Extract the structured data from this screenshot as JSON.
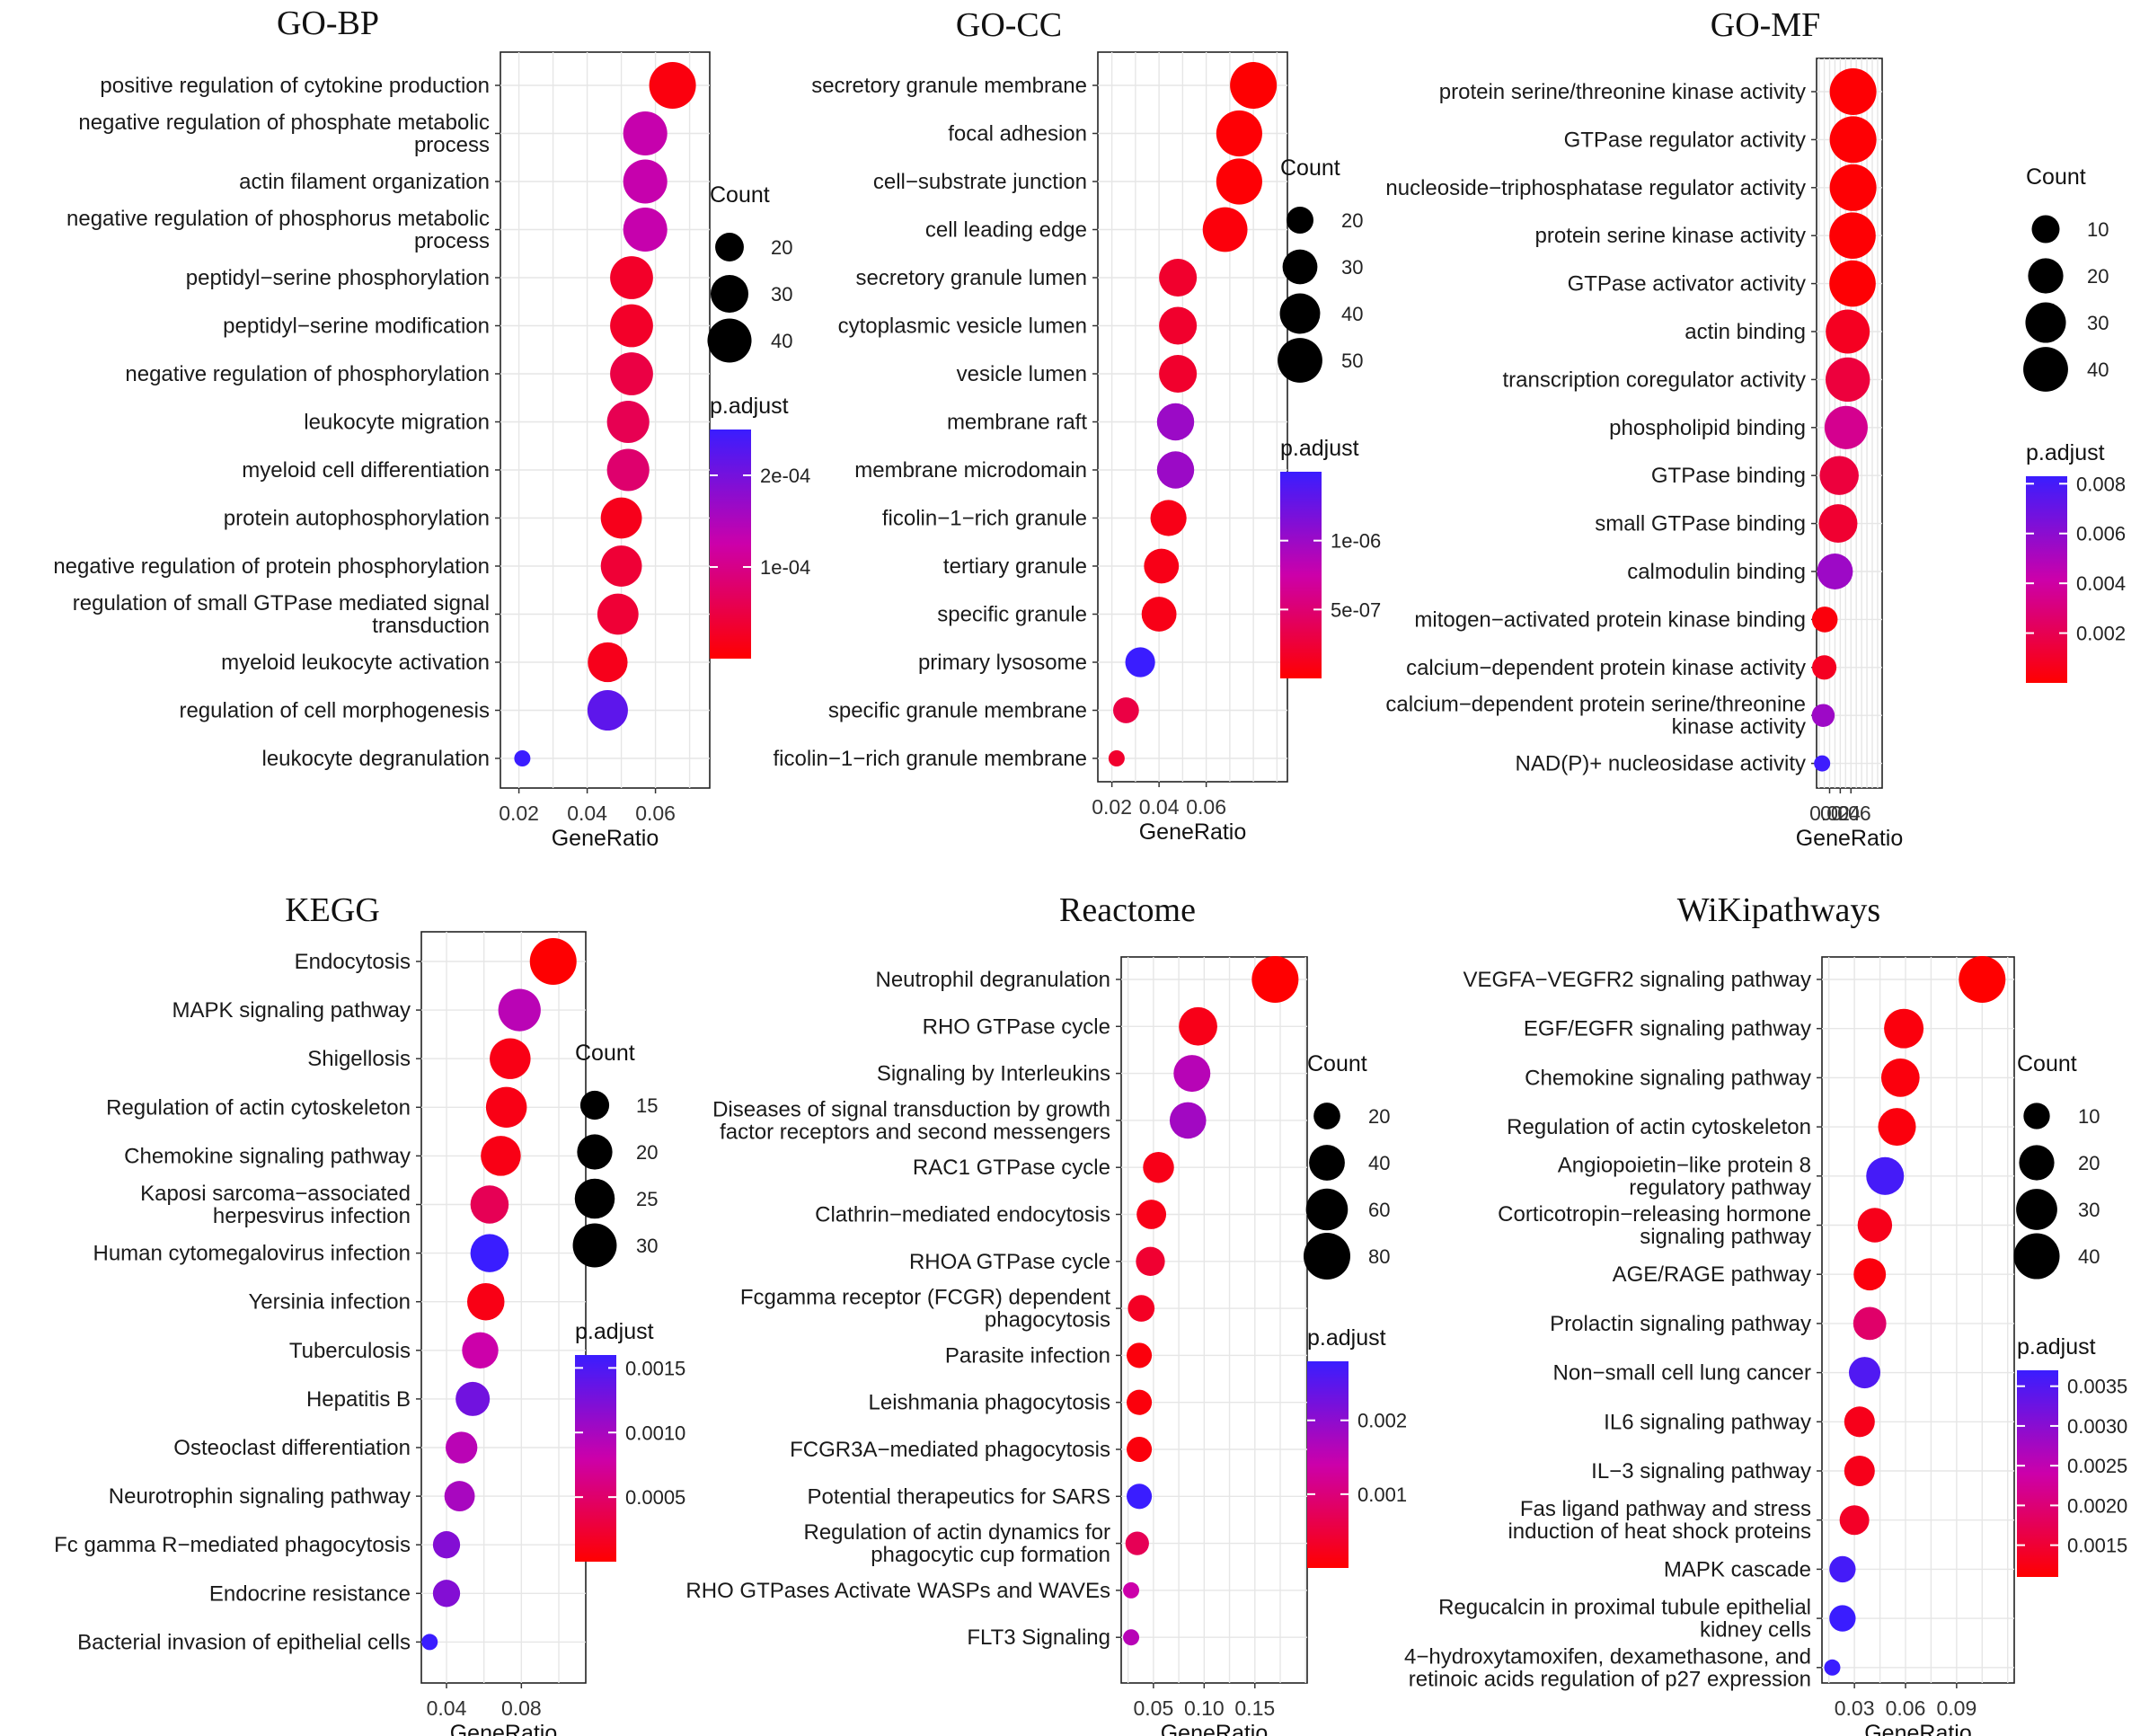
{
  "chart_data": [
    {
      "type": "scatter",
      "title": "GO-BP",
      "xlabel": "GeneRatio",
      "xticks": [
        0.02,
        0.04,
        0.06
      ],
      "xlim": [
        0.018,
        0.068
      ],
      "size_legend": {
        "title": "Count",
        "breaks": [
          20,
          30,
          40
        ]
      },
      "color_legend": {
        "title": "p.adjust",
        "min": 0,
        "max": 0.00025,
        "breaks": [
          0.0001,
          0.0002
        ],
        "labels": [
          "1e-04",
          "2e-04"
        ]
      },
      "terms": [
        {
          "label": [
            "positive regulation of cytokine production"
          ],
          "x": 0.065,
          "count": 45,
          "padj": 1e-05
        },
        {
          "label": [
            "negative regulation of phosphate metabolic",
            "process"
          ],
          "x": 0.057,
          "count": 40,
          "padj": 0.00013
        },
        {
          "label": [
            "actin filament organization"
          ],
          "x": 0.057,
          "count": 40,
          "padj": 0.00013
        },
        {
          "label": [
            "negative regulation of phosphorus metabolic",
            "process"
          ],
          "x": 0.057,
          "count": 40,
          "padj": 0.00013
        },
        {
          "label": [
            "peptidyl−serine phosphorylation"
          ],
          "x": 0.053,
          "count": 38,
          "padj": 3e-05
        },
        {
          "label": [
            "peptidyl−serine modification"
          ],
          "x": 0.053,
          "count": 38,
          "padj": 3e-05
        },
        {
          "label": [
            "negative regulation of phosphorylation"
          ],
          "x": 0.053,
          "count": 38,
          "padj": 5e-05
        },
        {
          "label": [
            "leukocyte migration"
          ],
          "x": 0.052,
          "count": 37,
          "padj": 6e-05
        },
        {
          "label": [
            "myeloid cell differentiation"
          ],
          "x": 0.052,
          "count": 37,
          "padj": 8e-05
        },
        {
          "label": [
            "protein autophosphorylation"
          ],
          "x": 0.05,
          "count": 35,
          "padj": 2e-05
        },
        {
          "label": [
            "negative regulation of protein phosphorylation"
          ],
          "x": 0.05,
          "count": 35,
          "padj": 4e-05
        },
        {
          "label": [
            "regulation of small GTPase mediated signal",
            "transduction"
          ],
          "x": 0.049,
          "count": 35,
          "padj": 4e-05
        },
        {
          "label": [
            "myeloid leukocyte activation"
          ],
          "x": 0.046,
          "count": 33,
          "padj": 2e-05
        },
        {
          "label": [
            "regulation of cell morphogenesis"
          ],
          "x": 0.046,
          "count": 34,
          "padj": 0.00022
        },
        {
          "label": [
            "leukocyte degranulation"
          ],
          "x": 0.021,
          "count": 15,
          "padj": 0.00025
        }
      ]
    },
    {
      "type": "scatter",
      "title": "GO-CC",
      "xlabel": "GeneRatio",
      "xticks": [
        0.02,
        0.04,
        0.06
      ],
      "xlim": [
        0.019,
        0.083
      ],
      "size_legend": {
        "title": "Count",
        "breaks": [
          20,
          30,
          40,
          50
        ]
      },
      "color_legend": {
        "title": "p.adjust",
        "min": 0,
        "max": 1.5e-06,
        "breaks": [
          5e-07,
          1e-06
        ],
        "labels": [
          "5e-07",
          "1e-06"
        ]
      },
      "terms": [
        {
          "label": [
            "secretory granule membrane"
          ],
          "x": 0.08,
          "count": 55,
          "padj": 1e-08
        },
        {
          "label": [
            "focal adhesion"
          ],
          "x": 0.074,
          "count": 53,
          "padj": 2e-08
        },
        {
          "label": [
            "cell−substrate junction"
          ],
          "x": 0.074,
          "count": 53,
          "padj": 2e-08
        },
        {
          "label": [
            "cell leading edge"
          ],
          "x": 0.068,
          "count": 50,
          "padj": 5e-08
        },
        {
          "label": [
            "secretory granule lumen"
          ],
          "x": 0.048,
          "count": 35,
          "padj": 2e-07
        },
        {
          "label": [
            "cytoplasmic vesicle lumen"
          ],
          "x": 0.048,
          "count": 35,
          "padj": 2e-07
        },
        {
          "label": [
            "vesicle lumen"
          ],
          "x": 0.048,
          "count": 35,
          "padj": 2e-07
        },
        {
          "label": [
            "membrane raft"
          ],
          "x": 0.047,
          "count": 34,
          "padj": 1e-06
        },
        {
          "label": [
            "membrane microdomain"
          ],
          "x": 0.047,
          "count": 34,
          "padj": 1e-06
        },
        {
          "label": [
            "ficolin−1−rich granule"
          ],
          "x": 0.044,
          "count": 32,
          "padj": 1e-07
        },
        {
          "label": [
            "tertiary granule"
          ],
          "x": 0.041,
          "count": 30,
          "padj": 1e-07
        },
        {
          "label": [
            "specific granule"
          ],
          "x": 0.04,
          "count": 30,
          "padj": 1e-07
        },
        {
          "label": [
            "primary lysosome"
          ],
          "x": 0.032,
          "count": 23,
          "padj": 1.5e-06
        },
        {
          "label": [
            "specific granule membrane"
          ],
          "x": 0.026,
          "count": 19,
          "padj": 3e-07
        },
        {
          "label": [
            "ficolin−1−rich granule membrane"
          ],
          "x": 0.022,
          "count": 15,
          "padj": 2e-07
        }
      ]
    },
    {
      "type": "scatter",
      "title": "GO-MF",
      "xlabel": "GeneRatio",
      "xticks": [
        0.02,
        0.04,
        0.06
      ],
      "xlim": [
        0.004,
        0.068
      ],
      "size_legend": {
        "title": "Count",
        "breaks": [
          10,
          20,
          30,
          40
        ]
      },
      "color_legend": {
        "title": "p.adjust",
        "min": 0,
        "max": 0.0083,
        "breaks": [
          0.002,
          0.004,
          0.006,
          0.008
        ],
        "labels": [
          "0.002",
          "0.004",
          "0.006",
          "0.008"
        ]
      },
      "terms": [
        {
          "label": [
            "protein serine/threonine kinase activity"
          ],
          "x": 0.064,
          "count": 45,
          "padj": 0.0001
        },
        {
          "label": [
            "GTPase regulator activity"
          ],
          "x": 0.064,
          "count": 45,
          "padj": 0.0001
        },
        {
          "label": [
            "nucleoside−triphosphatase regulator activity"
          ],
          "x": 0.064,
          "count": 45,
          "padj": 0.0001
        },
        {
          "label": [
            "protein serine kinase activity"
          ],
          "x": 0.063,
          "count": 44,
          "padj": 0.0001
        },
        {
          "label": [
            "GTPase activator activity"
          ],
          "x": 0.063,
          "count": 44,
          "padj": 0.0001
        },
        {
          "label": [
            "actin binding"
          ],
          "x": 0.054,
          "count": 38,
          "padj": 0.0008
        },
        {
          "label": [
            "transcription coregulator activity"
          ],
          "x": 0.054,
          "count": 39,
          "padj": 0.0015
        },
        {
          "label": [
            "phospholipid binding"
          ],
          "x": 0.051,
          "count": 36,
          "padj": 0.0035
        },
        {
          "label": [
            "GTPase binding"
          ],
          "x": 0.038,
          "count": 27,
          "padj": 0.0015
        },
        {
          "label": [
            "small GTPase binding"
          ],
          "x": 0.036,
          "count": 26,
          "padj": 0.0012
        },
        {
          "label": [
            "calmodulin binding"
          ],
          "x": 0.03,
          "count": 21,
          "padj": 0.0055
        },
        {
          "label": [
            "mitogen−activated protein kinase binding"
          ],
          "x": 0.011,
          "count": 8,
          "padj": 0.0003
        },
        {
          "label": [
            "calcium−dependent protein kinase activity"
          ],
          "x": 0.01,
          "count": 7,
          "padj": 0.0008
        },
        {
          "label": [
            "calcium−dependent protein serine/threonine",
            "kinase activity"
          ],
          "x": 0.008,
          "count": 6,
          "padj": 0.0055
        },
        {
          "label": [
            "NAD(P)+ nucleosidase activity"
          ],
          "x": 0.006,
          "count": 4,
          "padj": 0.0082
        }
      ]
    },
    {
      "type": "scatter",
      "title": "KEGG",
      "xlabel": "GeneRatio",
      "xticks": [
        0.04,
        0.08
      ],
      "xlim": [
        0.028,
        0.1
      ],
      "size_legend": {
        "title": "Count",
        "breaks": [
          15,
          20,
          25,
          30
        ]
      },
      "color_legend": {
        "title": "p.adjust",
        "min": 0,
        "max": 0.0016,
        "breaks": [
          0.0005,
          0.001,
          0.0015
        ],
        "labels": [
          "0.0005",
          "0.0010",
          "0.0015"
        ]
      },
      "terms": [
        {
          "label": [
            "Endocytosis"
          ],
          "x": 0.097,
          "count": 34,
          "padj": 1e-05
        },
        {
          "label": [
            "MAPK signaling pathway"
          ],
          "x": 0.079,
          "count": 28,
          "padj": 0.0009
        },
        {
          "label": [
            "Shigellosis"
          ],
          "x": 0.074,
          "count": 26,
          "padj": 0.0001
        },
        {
          "label": [
            "Regulation of actin cytoskeleton"
          ],
          "x": 0.072,
          "count": 26,
          "padj": 0.0001
        },
        {
          "label": [
            "Chemokine signaling pathway"
          ],
          "x": 0.069,
          "count": 25,
          "padj": 0.0001
        },
        {
          "label": [
            "Kaposi sarcoma−associated",
            "herpesvirus infection"
          ],
          "x": 0.063,
          "count": 23,
          "padj": 0.0004
        },
        {
          "label": [
            "Human cytomegalovirus infection"
          ],
          "x": 0.063,
          "count": 23,
          "padj": 0.0016
        },
        {
          "label": [
            "Yersinia infection"
          ],
          "x": 0.061,
          "count": 22,
          "padj": 0.0001
        },
        {
          "label": [
            "Tuberculosis"
          ],
          "x": 0.058,
          "count": 21,
          "padj": 0.0008
        },
        {
          "label": [
            "Hepatitis B"
          ],
          "x": 0.054,
          "count": 19,
          "padj": 0.0013
        },
        {
          "label": [
            "Osteoclast differentiation"
          ],
          "x": 0.048,
          "count": 17,
          "padj": 0.0009
        },
        {
          "label": [
            "Neurotrophin signaling pathway"
          ],
          "x": 0.047,
          "count": 16,
          "padj": 0.001
        },
        {
          "label": [
            "Fc gamma R−mediated phagocytosis"
          ],
          "x": 0.04,
          "count": 14,
          "padj": 0.0012
        },
        {
          "label": [
            "Endocrine resistance"
          ],
          "x": 0.04,
          "count": 14,
          "padj": 0.0012
        },
        {
          "label": [
            "Bacterial invasion of epithelial cells"
          ],
          "x": 0.031,
          "count": 11,
          "padj": 0.0016
        }
      ]
    },
    {
      "type": "scatter",
      "title": "Reactome",
      "xlabel": "GeneRatio",
      "xticks": [
        0.05,
        0.1,
        0.15
      ],
      "xtick_labels": [
        "0.05",
        "0.10",
        "0.15"
      ],
      "xlim": [
        0.02,
        0.175
      ],
      "size_legend": {
        "title": "Count",
        "breaks": [
          20,
          40,
          60,
          80
        ]
      },
      "color_legend": {
        "title": "p.adjust",
        "min": 0,
        "max": 0.0028,
        "breaks": [
          0.001,
          0.002
        ],
        "labels": [
          "0.001",
          "0.002"
        ]
      },
      "terms": [
        {
          "label": [
            "Neutrophil degranulation"
          ],
          "x": 0.17,
          "count": 80,
          "padj": 1e-05
        },
        {
          "label": [
            "RHO GTPase cycle"
          ],
          "x": 0.094,
          "count": 48,
          "padj": 0.0002
        },
        {
          "label": [
            "Signaling by Interleukins"
          ],
          "x": 0.088,
          "count": 43,
          "padj": 0.0016
        },
        {
          "label": [
            "Diseases of signal transduction by growth",
            "factor receptors and second messengers"
          ],
          "x": 0.084,
          "count": 42,
          "padj": 0.0018
        },
        {
          "label": [
            "RAC1 GTPase cycle"
          ],
          "x": 0.055,
          "count": 28,
          "padj": 0.0002
        },
        {
          "label": [
            "Clathrin−mediated endocytosis"
          ],
          "x": 0.048,
          "count": 25,
          "padj": 0.0002
        },
        {
          "label": [
            "RHOA GTPase cycle"
          ],
          "x": 0.047,
          "count": 24,
          "padj": 0.0004
        },
        {
          "label": [
            "Fcgamma receptor (FCGR) dependent",
            "phagocytosis"
          ],
          "x": 0.038,
          "count": 20,
          "padj": 0.0003
        },
        {
          "label": [
            "Parasite infection"
          ],
          "x": 0.036,
          "count": 18,
          "padj": 0.0001
        },
        {
          "label": [
            "Leishmania phagocytosis"
          ],
          "x": 0.036,
          "count": 18,
          "padj": 0.0001
        },
        {
          "label": [
            "FCGR3A−mediated phagocytosis"
          ],
          "x": 0.036,
          "count": 18,
          "padj": 0.0001
        },
        {
          "label": [
            "Potential therapeutics for SARS"
          ],
          "x": 0.036,
          "count": 18,
          "padj": 0.0028
        },
        {
          "label": [
            "Regulation of actin dynamics for",
            "phagocytic cup formation"
          ],
          "x": 0.034,
          "count": 16,
          "padj": 0.0007
        },
        {
          "label": [
            "RHO GTPases Activate WASPs and WAVEs"
          ],
          "x": 0.028,
          "count": 12,
          "padj": 0.0014
        },
        {
          "label": [
            "FLT3 Signaling"
          ],
          "x": 0.028,
          "count": 12,
          "padj": 0.0016
        }
      ]
    },
    {
      "type": "scatter",
      "title": "WiKipathways",
      "xlabel": "GeneRatio",
      "xticks": [
        0.03,
        0.06,
        0.09
      ],
      "xlim": [
        0.012,
        0.108
      ],
      "size_legend": {
        "title": "Count",
        "breaks": [
          10,
          20,
          30,
          40
        ]
      },
      "color_legend": {
        "title": "p.adjust",
        "min": 0.0011,
        "max": 0.0037,
        "breaks": [
          0.0015,
          0.002,
          0.0025,
          0.003,
          0.0035
        ],
        "labels": [
          "0.0015",
          "0.0020",
          "0.0025",
          "0.0030",
          "0.0035"
        ]
      },
      "terms": [
        {
          "label": [
            "VEGFA−VEGFR2 signaling pathway"
          ],
          "x": 0.105,
          "count": 42,
          "padj": 0.0011
        },
        {
          "label": [
            "EGF/EGFR signaling pathway"
          ],
          "x": 0.059,
          "count": 27,
          "padj": 0.0012
        },
        {
          "label": [
            "Chemokine signaling pathway"
          ],
          "x": 0.057,
          "count": 25,
          "padj": 0.0012
        },
        {
          "label": [
            "Regulation of actin cytoskeleton"
          ],
          "x": 0.055,
          "count": 24,
          "padj": 0.0012
        },
        {
          "label": [
            "Angiopoietin−like protein 8",
            "regulatory pathway"
          ],
          "x": 0.048,
          "count": 24,
          "padj": 0.0036
        },
        {
          "label": [
            "Corticotropin−releasing hormone",
            "signaling pathway"
          ],
          "x": 0.042,
          "count": 19,
          "padj": 0.0013
        },
        {
          "label": [
            "AGE/RAGE pathway"
          ],
          "x": 0.039,
          "count": 16,
          "padj": 0.0012
        },
        {
          "label": [
            "Prolactin signaling pathway"
          ],
          "x": 0.039,
          "count": 17,
          "padj": 0.0019
        },
        {
          "label": [
            "Non−small cell lung cancer"
          ],
          "x": 0.036,
          "count": 15,
          "padj": 0.0035
        },
        {
          "label": [
            "IL6 signaling pathway"
          ],
          "x": 0.033,
          "count": 14,
          "padj": 0.0013
        },
        {
          "label": [
            "IL−3 signaling pathway"
          ],
          "x": 0.033,
          "count": 14,
          "padj": 0.0013
        },
        {
          "label": [
            "Fas ligand pathway and stress",
            "induction of heat shock proteins"
          ],
          "x": 0.03,
          "count": 13,
          "padj": 0.0014
        },
        {
          "label": [
            "MAPK cascade"
          ],
          "x": 0.023,
          "count": 10,
          "padj": 0.0036
        },
        {
          "label": [
            "Regucalcin in proximal tubule epithelial",
            "kidney cells"
          ],
          "x": 0.023,
          "count": 10,
          "padj": 0.0037
        },
        {
          "label": [
            "4−hydroxytamoxifen, dexamethasone, and",
            "retinoic acids regulation of p27 expression"
          ],
          "x": 0.017,
          "count": 6,
          "padj": 0.0037
        }
      ]
    }
  ]
}
